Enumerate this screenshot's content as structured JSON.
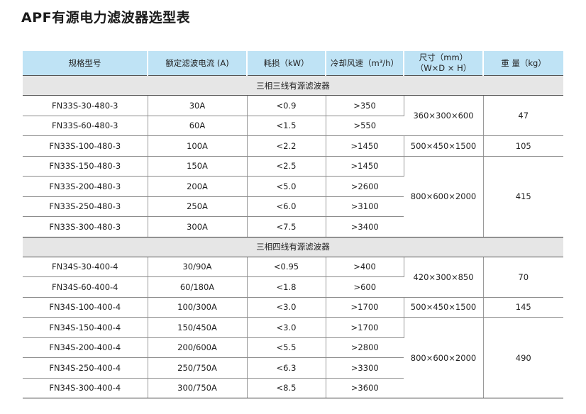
{
  "title": "APF有源电力滤波器选型表",
  "headers": [
    "规格型号",
    "额定滤波电流 (A)",
    "耗损（kW）",
    "冷却风速（m³/h）",
    "尺寸（mm）",
    "（W×D × H）",
    "重 量（kg）"
  ],
  "group1": {
    "label": "三相三线有源滤波器",
    "rows": [
      [
        "FN33S-30-480-3",
        "30A",
        "<0.9",
        ">350"
      ],
      [
        "FN33S-60-480-3",
        "60A",
        "<1.5",
        ">550"
      ],
      [
        "FN33S-100-480-3",
        "100A",
        "<2.2",
        ">1450"
      ],
      [
        "FN33S-150-480-3",
        "150A",
        "<2.5",
        ">1450"
      ],
      [
        "FN33S-200-480-3",
        "200A",
        "<5.0",
        ">2600"
      ],
      [
        "FN33S-250-480-3",
        "250A",
        "<6.0",
        ">3100"
      ],
      [
        "FN33S-300-480-3",
        "300A",
        "<7.5",
        ">3400"
      ]
    ],
    "sizes": [
      "360×300×600",
      "500×450×1500",
      "800×600×2000"
    ],
    "weights": [
      "47",
      "105",
      "415"
    ]
  },
  "group2": {
    "label": "三相四线有源滤波器",
    "rows": [
      [
        "FN34S-30-400-4",
        "30/90A",
        "<0.95",
        ">400"
      ],
      [
        "FN34S-60-400-4",
        "60/180A",
        "<1.8",
        ">600"
      ],
      [
        "FN34S-100-400-4",
        "100/300A",
        "<3.0",
        ">1700"
      ],
      [
        "FN34S-150-400-4",
        "150/450A",
        "<3.0",
        ">1700"
      ],
      [
        "FN34S-200-400-4",
        "200/600A",
        "<5.5",
        ">2800"
      ],
      [
        "FN34S-250-400-4",
        "250/750A",
        "<6.3",
        ">3300"
      ],
      [
        "FN34S-300-400-4",
        "300/750A",
        "<8.5",
        ">3600"
      ]
    ],
    "sizes": [
      "420×300×850",
      "500×450×1500",
      "800×600×2000"
    ],
    "weights": [
      "70",
      "145",
      "490"
    ]
  },
  "colors": {
    "header_bg": "#bfe3f5",
    "group_bg": "#e6e6e6"
  }
}
